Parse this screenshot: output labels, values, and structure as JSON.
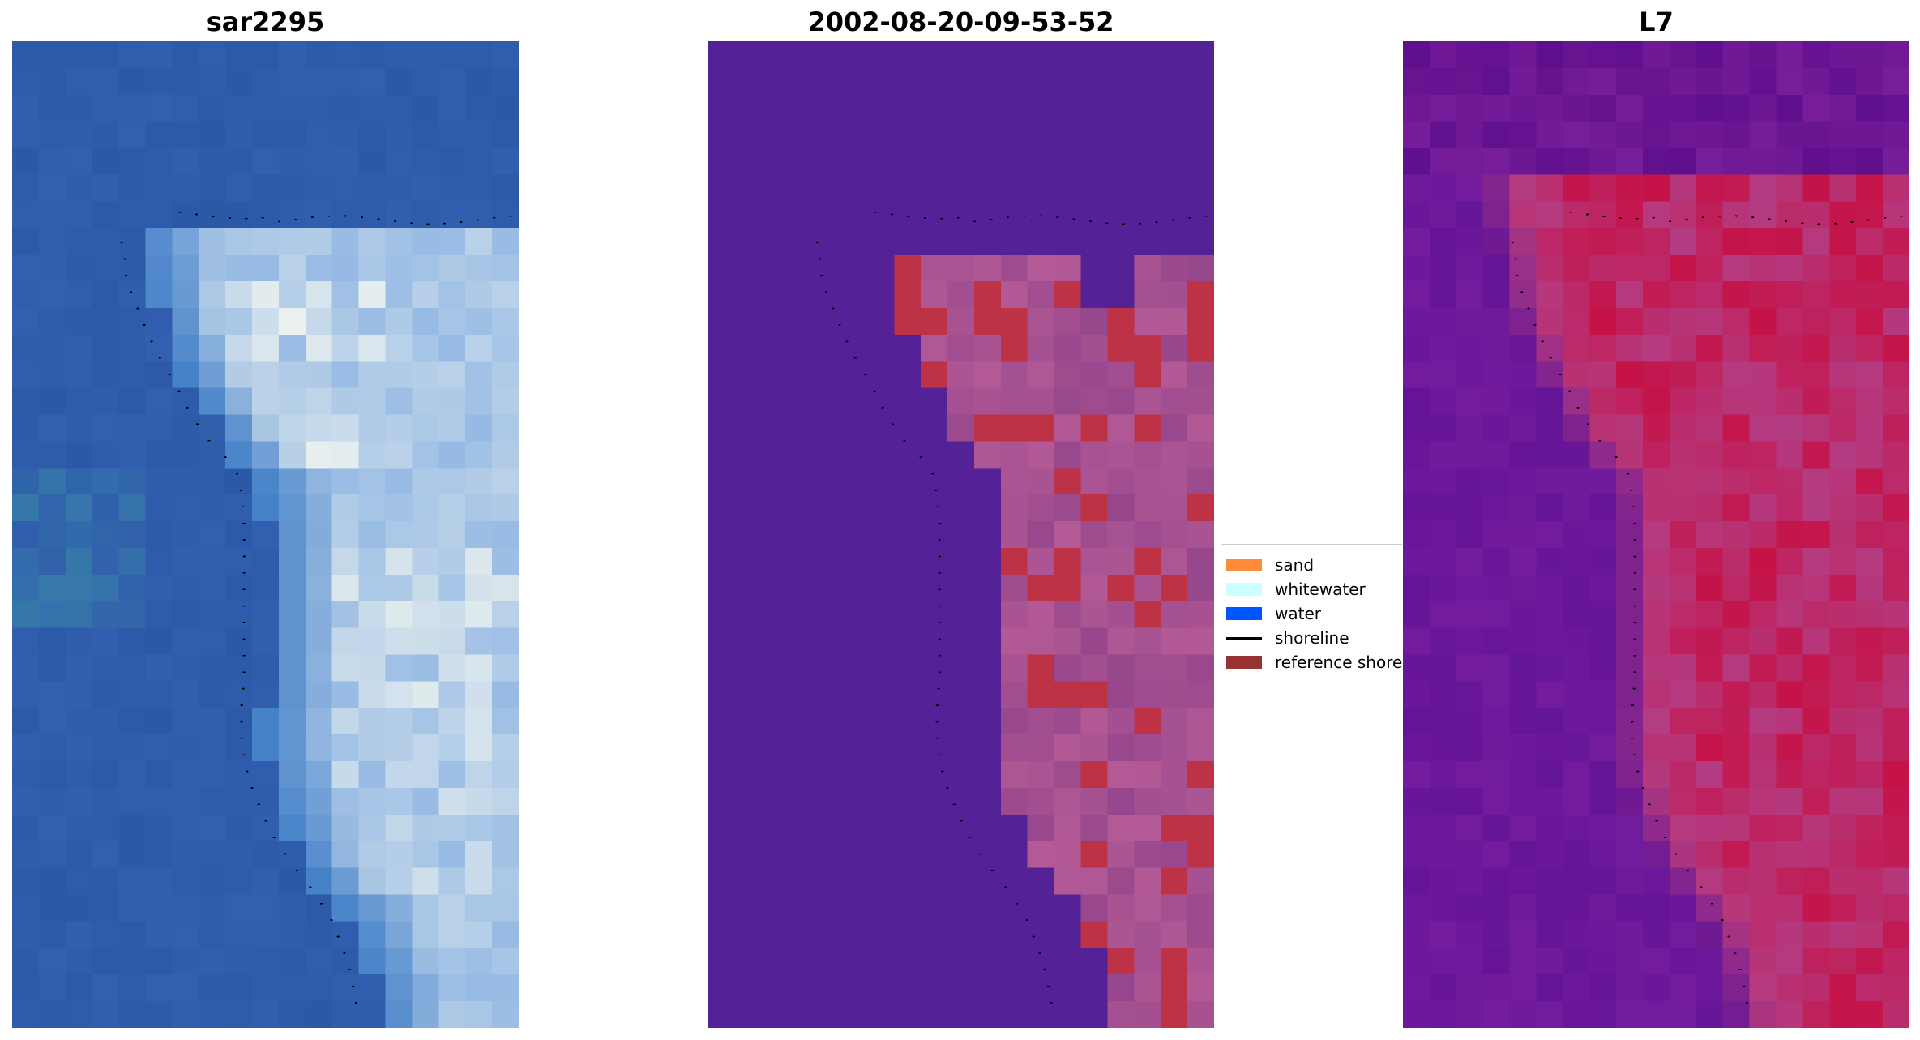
{
  "panels": [
    {
      "title": "sar2295",
      "kind": "rgb"
    },
    {
      "title": "2002-08-20-09-53-52",
      "kind": "classification"
    },
    {
      "title": "L7",
      "kind": "index"
    }
  ],
  "legend": {
    "items": [
      {
        "label": "sand",
        "type": "patch",
        "color": "#ff8c3a"
      },
      {
        "label": "whitewater",
        "type": "patch",
        "color": "#ccffff"
      },
      {
        "label": "water",
        "type": "patch",
        "color": "#0055ff"
      },
      {
        "label": "shoreline",
        "type": "line",
        "color": "#000000"
      },
      {
        "label": "reference shoreline",
        "type": "patch",
        "color": "#993333"
      }
    ]
  }
}
